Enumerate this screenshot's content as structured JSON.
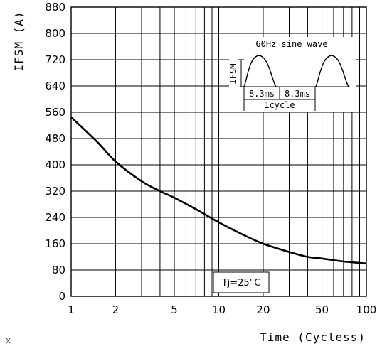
{
  "chart_data": {
    "type": "line",
    "title": "",
    "xlabel": "Time (Cycless)",
    "ylabel": "IFSM (A)",
    "x_scale": "log",
    "xlim": [
      1,
      100
    ],
    "ylim": [
      0,
      880
    ],
    "x_ticks": [
      "1",
      "2",
      "5",
      "10",
      "20",
      "50",
      "100"
    ],
    "y_ticks": [
      "0",
      "80",
      "160",
      "240",
      "320",
      "400",
      "480",
      "560",
      "640",
      "720",
      "800",
      "880"
    ],
    "grid": true,
    "series": [
      {
        "x": [
          1,
          1.5,
          2,
          3,
          4,
          5,
          7,
          10,
          15,
          20,
          30,
          40,
          50,
          70,
          100
        ],
        "y": [
          545,
          470,
          410,
          350,
          320,
          300,
          265,
          225,
          185,
          160,
          135,
          120,
          115,
          106,
          100
        ]
      }
    ],
    "annotations": [
      {
        "text": "Tj=25°C"
      }
    ],
    "inset": {
      "title": "60Hz sine wave",
      "y_label": "IFSM",
      "half_period_label_1": "8.3ms",
      "half_period_label_2": "8.3ms",
      "period_label": "1cycle"
    }
  },
  "stray_mark": "x"
}
